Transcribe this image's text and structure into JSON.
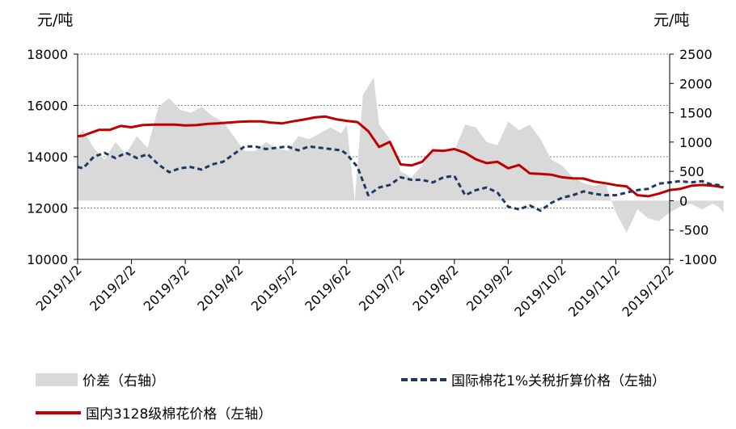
{
  "chart_data": {
    "type": "line",
    "left_unit": "元/吨",
    "right_unit": "元/吨",
    "y_left": {
      "min": 10000,
      "max": 18000,
      "ticks": [
        10000,
        12000,
        14000,
        16000,
        18000
      ]
    },
    "y_right": {
      "min": -1000,
      "max": 2500,
      "ticks": [
        -1000,
        -500,
        0,
        500,
        1000,
        1500,
        2000,
        2500
      ]
    },
    "x_ticks": [
      "2019/1/2",
      "2019/2/2",
      "2019/3/2",
      "2019/4/2",
      "2019/5/2",
      "2019/6/2",
      "2019/7/2",
      "2019/8/2",
      "2019/9/2",
      "2019/10/2",
      "2019/11/2",
      "2019/12/2"
    ],
    "grid": true,
    "colors": {
      "domestic": "#c00000",
      "international": "#1f3864",
      "spread": "#d9d9d9"
    },
    "series": [
      {
        "name": "国内3128级棉花价格（左轴）",
        "axis": "left",
        "style": "solid",
        "x": [
          0,
          0.1,
          0.2,
          0.4,
          0.6,
          0.8,
          1.0,
          1.2,
          1.4,
          1.6,
          1.8,
          2.0,
          2.2,
          2.4,
          2.6,
          2.8,
          3.0,
          3.2,
          3.4,
          3.6,
          3.8,
          4.0,
          4.2,
          4.4,
          4.6,
          4.8,
          5.0,
          5.2,
          5.4,
          5.6,
          5.8,
          6.0,
          6.2,
          6.4,
          6.6,
          6.8,
          7.0,
          7.2,
          7.4,
          7.6,
          7.8,
          8.0,
          8.2,
          8.4,
          8.6,
          8.8,
          9.0,
          9.2,
          9.4,
          9.6,
          9.8,
          10.0,
          10.2,
          10.4,
          10.6,
          10.8,
          11.0,
          11.2,
          11.4,
          11.6,
          11.8,
          11.9,
          12.0
        ],
        "y": [
          14800,
          14820,
          14900,
          15050,
          15050,
          15200,
          15150,
          15230,
          15250,
          15250,
          15250,
          15220,
          15230,
          15280,
          15300,
          15330,
          15360,
          15380,
          15380,
          15330,
          15300,
          15380,
          15450,
          15530,
          15570,
          15460,
          15400,
          15350,
          15000,
          14380,
          14580,
          13700,
          13660,
          13800,
          14250,
          14230,
          14300,
          14150,
          13900,
          13750,
          13800,
          13550,
          13680,
          13350,
          13330,
          13300,
          13200,
          13160,
          13150,
          13030,
          12970,
          12890,
          12840,
          12500,
          12460,
          12560,
          12700,
          12750,
          12870,
          12900,
          12870,
          12840,
          12800
        ]
      },
      {
        "name": "国际棉花1%关税折算价格（左轴）",
        "axis": "left",
        "style": "dashed",
        "x": [
          0,
          0.1,
          0.3,
          0.5,
          0.7,
          0.9,
          1.1,
          1.3,
          1.5,
          1.7,
          1.9,
          2.1,
          2.3,
          2.5,
          2.7,
          2.9,
          3.1,
          3.3,
          3.5,
          3.7,
          3.9,
          4.1,
          4.3,
          4.5,
          4.7,
          4.9,
          5.0,
          5.2,
          5.4,
          5.6,
          5.8,
          6.0,
          6.2,
          6.4,
          6.6,
          6.8,
          7.0,
          7.2,
          7.4,
          7.6,
          7.8,
          8.0,
          8.2,
          8.4,
          8.6,
          8.8,
          9.0,
          9.2,
          9.4,
          9.6,
          9.8,
          10.0,
          10.2,
          10.4,
          10.6,
          10.8,
          11.0,
          11.2,
          11.4,
          11.6,
          11.8,
          11.9,
          12.0
        ],
        "y": [
          13600,
          13550,
          14000,
          14150,
          13950,
          14150,
          13950,
          14100,
          13700,
          13400,
          13550,
          13600,
          13500,
          13700,
          13800,
          14100,
          14400,
          14400,
          14300,
          14350,
          14400,
          14250,
          14400,
          14350,
          14300,
          14250,
          14100,
          13600,
          12500,
          12800,
          12900,
          13200,
          13100,
          13100,
          13000,
          13200,
          13250,
          12500,
          12700,
          12800,
          12600,
          12050,
          11950,
          12100,
          11900,
          12200,
          12400,
          12500,
          12650,
          12550,
          12500,
          12500,
          12600,
          12700,
          12750,
          12950,
          13000,
          13050,
          13000,
          13050,
          12900,
          12900,
          12800
        ]
      },
      {
        "name": "价差（右轴）",
        "axis": "right",
        "style": "area",
        "x": [
          0,
          0.1,
          0.3,
          0.5,
          0.7,
          0.9,
          1.1,
          1.3,
          1.5,
          1.7,
          1.9,
          2.1,
          2.3,
          2.5,
          2.7,
          2.9,
          3.1,
          3.3,
          3.5,
          3.7,
          3.9,
          4.1,
          4.3,
          4.5,
          4.7,
          4.9,
          5.0,
          5.15,
          5.3,
          5.5,
          5.6,
          5.8,
          6.0,
          6.2,
          6.4,
          6.6,
          6.8,
          7.0,
          7.2,
          7.4,
          7.6,
          7.8,
          8.0,
          8.2,
          8.4,
          8.6,
          8.8,
          9.0,
          9.2,
          9.4,
          9.6,
          9.8,
          10.0,
          10.2,
          10.4,
          10.6,
          10.8,
          11.0,
          11.2,
          11.4,
          11.6,
          11.8,
          11.9,
          12.0
        ],
        "y": [
          1100,
          1200,
          900,
          700,
          1000,
          800,
          1100,
          900,
          1600,
          1750,
          1550,
          1500,
          1600,
          1450,
          1350,
          1100,
          850,
          850,
          1000,
          900,
          850,
          1100,
          1050,
          1150,
          1250,
          1150,
          1300,
          0,
          1800,
          2100,
          1300,
          1050,
          500,
          400,
          600,
          900,
          850,
          850,
          1300,
          1250,
          1000,
          950,
          1350,
          1200,
          1300,
          1050,
          700,
          600,
          400,
          300,
          250,
          300,
          -200,
          -550,
          -150,
          -300,
          -350,
          -200,
          -100,
          -50,
          -150,
          -50,
          -100,
          -200
        ]
      }
    ],
    "legend": [
      {
        "label": "价差（右轴）",
        "kind": "area"
      },
      {
        "label": "国际棉花1%关税折算价格（左轴）",
        "kind": "dashed"
      },
      {
        "label": "国内3128级棉花价格（左轴）",
        "kind": "solid"
      }
    ]
  }
}
